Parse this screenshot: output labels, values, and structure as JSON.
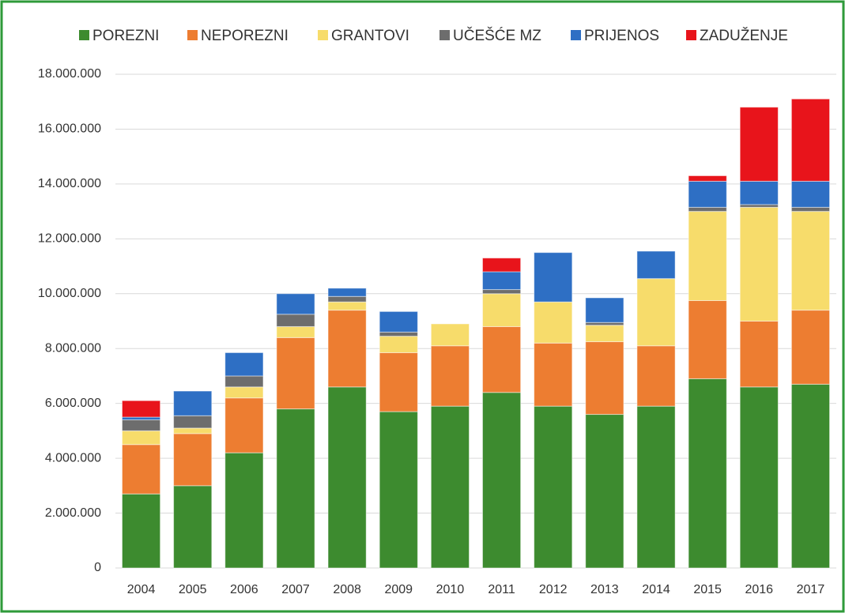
{
  "chart_data": {
    "type": "stacked_bar",
    "categories": [
      "2004",
      "2005",
      "2006",
      "2007",
      "2008",
      "2009",
      "2010",
      "2011",
      "2012",
      "2013",
      "2014",
      "2015",
      "2016",
      "2017"
    ],
    "series": [
      {
        "name": "POREZNI",
        "color": "#3d8b2f",
        "values": [
          2700000,
          3000000,
          4200000,
          5800000,
          6600000,
          5700000,
          5900000,
          6400000,
          5900000,
          5600000,
          5900000,
          6900000,
          6600000,
          6700000
        ]
      },
      {
        "name": "NEPOREZNI",
        "color": "#ed7d31",
        "values": [
          1800000,
          1900000,
          2000000,
          2600000,
          2800000,
          2150000,
          2200000,
          2400000,
          2300000,
          2650000,
          2200000,
          2850000,
          2400000,
          2700000
        ]
      },
      {
        "name": "GRANTOVI",
        "color": "#f7dc6b",
        "values": [
          500000,
          200000,
          400000,
          400000,
          300000,
          600000,
          800000,
          1200000,
          1500000,
          600000,
          2450000,
          3250000,
          4150000,
          3600000
        ]
      },
      {
        "name": "UČEŠĆE MZ",
        "color": "#6d6d6d",
        "values": [
          400000,
          450000,
          400000,
          450000,
          200000,
          150000,
          0,
          150000,
          0,
          100000,
          0,
          150000,
          100000,
          150000
        ]
      },
      {
        "name": "PRIJENOS",
        "color": "#2e6fc4",
        "values": [
          100000,
          900000,
          850000,
          750000,
          300000,
          750000,
          0,
          650000,
          1800000,
          900000,
          1000000,
          950000,
          850000,
          950000
        ]
      },
      {
        "name": "ZADUŽENJE",
        "color": "#e8141b",
        "values": [
          600000,
          0,
          0,
          0,
          0,
          0,
          0,
          500000,
          0,
          0,
          0,
          200000,
          2700000,
          3000000
        ]
      }
    ],
    "ylim": [
      0,
      18000000
    ],
    "yticks": [
      0,
      {
        "value": 2000000,
        "label": "2.000.000"
      },
      {
        "value": 4000000,
        "label": "4.000.000"
      },
      {
        "value": 6000000,
        "label": "6.000.000"
      },
      {
        "value": 8000000,
        "label": "8.000.000"
      },
      {
        "value": 10000000,
        "label": "10.000.000"
      },
      {
        "value": 12000000,
        "label": "12.000.000"
      },
      {
        "value": 14000000,
        "label": "14.000.000"
      },
      {
        "value": 16000000,
        "label": "16.000.000"
      },
      {
        "value": 18000000,
        "label": "18.000.000"
      }
    ],
    "grid": true,
    "legend": "top"
  }
}
